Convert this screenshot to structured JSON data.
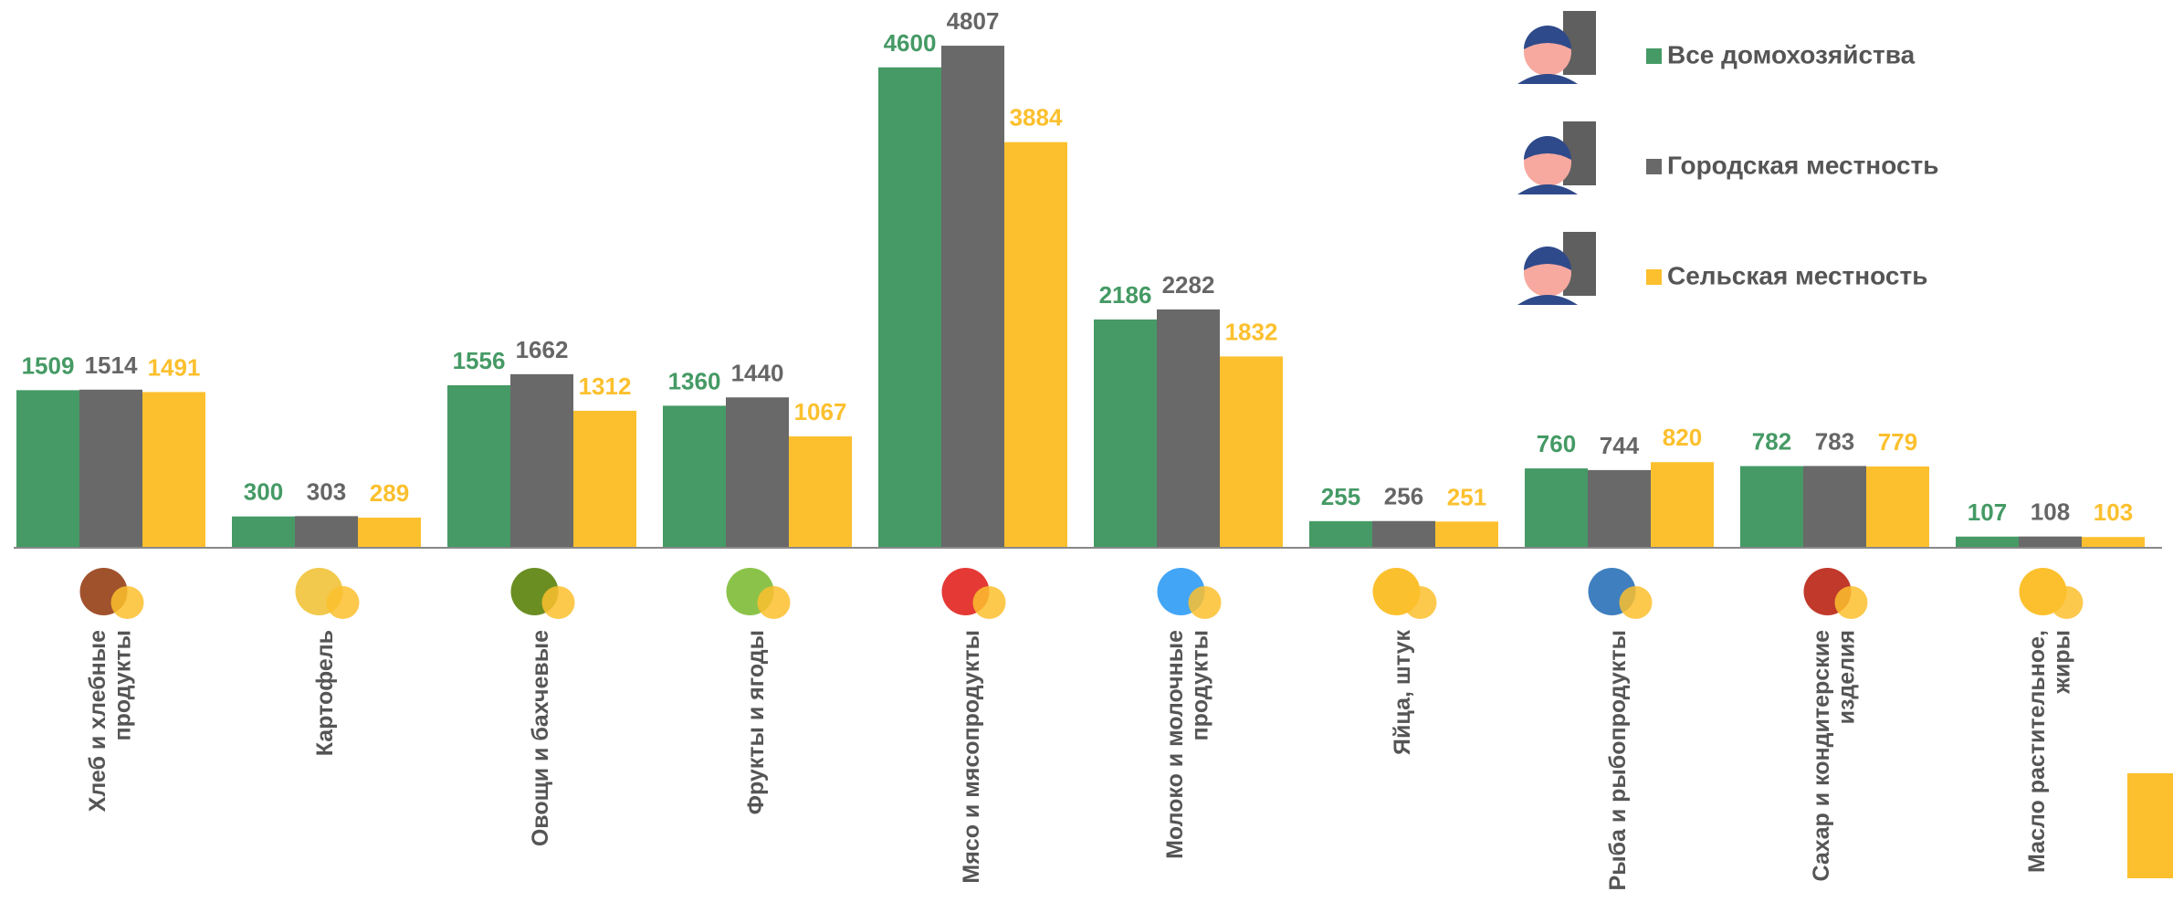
{
  "chart_data": {
    "type": "bar",
    "categories": [
      "Хлеб и хлебные\nпродукты",
      "Картофель",
      "Овощи и бахчевые",
      "Фрукты и ягоды",
      "Мясо и мясопродукты",
      "Молоко и молочные\nпродукты",
      "Яйца, штук",
      "Рыба и рыбопродукты",
      "Сахар и кондитерские\nизделия",
      "Масло растительное,\nжиры"
    ],
    "series": [
      {
        "name": "Все домохозяйства",
        "color": "#459a65",
        "values": [
          1509,
          300,
          1556,
          1360,
          4600,
          2186,
          255,
          760,
          782,
          107
        ]
      },
      {
        "name": "Городская местность",
        "color": "#696969",
        "values": [
          1514,
          303,
          1662,
          1440,
          4807,
          2282,
          256,
          744,
          783,
          108
        ]
      },
      {
        "name": "Сельская местность",
        "color": "#fcc02e",
        "values": [
          1491,
          289,
          1312,
          1067,
          3884,
          1832,
          251,
          820,
          779,
          103
        ]
      }
    ],
    "ylim": [
      0,
      5000
    ],
    "legend": "top-right"
  }
}
